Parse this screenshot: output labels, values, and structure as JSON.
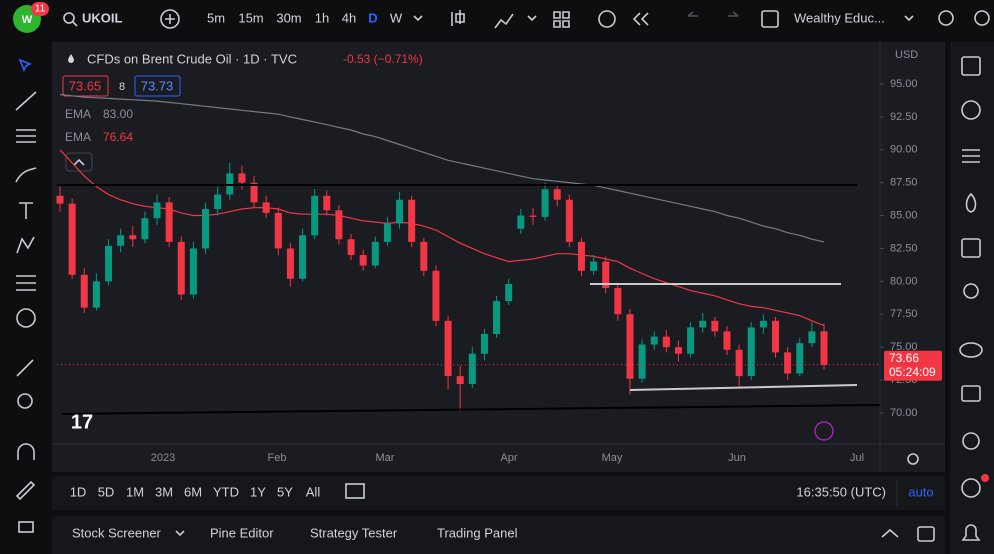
{
  "toolbar": {
    "badge": "11",
    "symbol": "UKOIL",
    "intervals": [
      "5m",
      "15m",
      "30m",
      "1h",
      "4h",
      "D",
      "W"
    ],
    "active_interval": 5,
    "layout_name": "Wealthy Educ..."
  },
  "chart_data": {
    "type": "candlestick",
    "title": "CFDs on Brent Crude Oil · 1D · TVC",
    "change": "-0.53 (−0.71%)",
    "bid": 73.65,
    "spread": 8,
    "ask": 73.73,
    "currency": "USD",
    "up_color": "#089981",
    "down_color": "#f23645",
    "candles": [
      [
        86.5,
        87.2,
        85.3,
        85.9
      ],
      [
        85.9,
        86.3,
        80.2,
        80.5
      ],
      [
        80.5,
        81.0,
        77.6,
        78.0
      ],
      [
        78.0,
        80.6,
        77.8,
        80.0
      ],
      [
        80.0,
        83.2,
        79.7,
        82.7
      ],
      [
        82.7,
        84.0,
        82.2,
        83.5
      ],
      [
        83.5,
        84.2,
        82.6,
        83.2
      ],
      [
        83.2,
        85.3,
        82.9,
        84.8
      ],
      [
        84.8,
        86.6,
        84.3,
        86.0
      ],
      [
        86.0,
        86.4,
        82.6,
        83.0
      ],
      [
        83.0,
        83.4,
        78.6,
        79.0
      ],
      [
        79.0,
        83.0,
        78.7,
        82.5
      ],
      [
        82.5,
        86.0,
        82.1,
        85.5
      ],
      [
        85.5,
        87.2,
        85.0,
        86.6
      ],
      [
        86.6,
        89.0,
        86.2,
        88.2
      ],
      [
        88.2,
        88.8,
        87.0,
        87.5
      ],
      [
        87.5,
        88.0,
        85.6,
        86.0
      ],
      [
        86.0,
        86.5,
        84.8,
        85.2
      ],
      [
        85.2,
        85.6,
        82.0,
        82.5
      ],
      [
        82.5,
        82.9,
        79.6,
        80.2
      ],
      [
        80.2,
        84.0,
        80.0,
        83.5
      ],
      [
        83.5,
        87.0,
        83.2,
        86.5
      ],
      [
        86.5,
        86.9,
        85.0,
        85.4
      ],
      [
        85.4,
        85.8,
        82.8,
        83.2
      ],
      [
        83.2,
        83.6,
        81.6,
        82.0
      ],
      [
        82.0,
        82.4,
        80.8,
        81.2
      ],
      [
        81.2,
        83.4,
        81.0,
        83.0
      ],
      [
        83.0,
        84.9,
        82.7,
        84.4
      ],
      [
        84.4,
        86.8,
        84.0,
        86.2
      ],
      [
        86.2,
        86.5,
        82.6,
        83.0
      ],
      [
        83.0,
        83.3,
        80.4,
        80.8
      ],
      [
        80.8,
        81.2,
        76.6,
        77.0
      ],
      [
        77.0,
        77.4,
        71.8,
        72.8
      ],
      [
        72.8,
        73.6,
        70.1,
        72.2
      ],
      [
        72.2,
        75.0,
        71.9,
        74.5
      ],
      [
        74.5,
        76.4,
        74.0,
        76.0
      ],
      [
        76.0,
        78.9,
        75.7,
        78.5
      ],
      [
        78.5,
        80.2,
        78.2,
        79.8
      ],
      [
        84.0,
        85.5,
        83.6,
        85.0
      ],
      [
        85.0,
        85.6,
        84.3,
        84.9
      ],
      [
        84.9,
        87.5,
        84.6,
        87.0
      ],
      [
        87.0,
        87.3,
        85.7,
        86.2
      ],
      [
        86.2,
        86.6,
        82.6,
        83.0
      ],
      [
        83.0,
        83.3,
        80.4,
        80.8
      ],
      [
        80.8,
        82.0,
        80.5,
        81.5
      ],
      [
        81.5,
        81.9,
        79.1,
        79.5
      ],
      [
        79.5,
        79.9,
        77.0,
        77.5
      ],
      [
        77.5,
        77.9,
        71.4,
        72.6
      ],
      [
        72.6,
        75.6,
        72.3,
        75.2
      ],
      [
        75.2,
        76.2,
        74.8,
        75.8
      ],
      [
        75.8,
        76.3,
        74.6,
        75.0
      ],
      [
        75.0,
        75.5,
        73.9,
        74.5
      ],
      [
        74.5,
        76.9,
        74.2,
        76.5
      ],
      [
        76.5,
        77.6,
        76.1,
        77.0
      ],
      [
        77.0,
        77.3,
        75.8,
        76.2
      ],
      [
        76.2,
        76.6,
        74.4,
        74.8
      ],
      [
        74.8,
        75.2,
        72.0,
        72.8
      ],
      [
        72.8,
        76.9,
        72.5,
        76.5
      ],
      [
        76.5,
        77.5,
        76.0,
        77.0
      ],
      [
        77.0,
        77.3,
        74.2,
        74.6
      ],
      [
        74.6,
        75.0,
        72.5,
        73.0
      ],
      [
        73.0,
        75.7,
        72.8,
        75.3
      ],
      [
        75.3,
        76.9,
        75.0,
        76.2
      ],
      [
        76.2,
        76.8,
        73.3,
        73.66
      ]
    ],
    "series": [
      {
        "name": "EMA",
        "color": "#787b86",
        "legend_value": "83.00",
        "values": [
          94.2,
          94.1,
          94.0,
          93.95,
          93.9,
          93.85,
          93.8,
          93.75,
          93.7,
          93.6,
          93.5,
          93.4,
          93.3,
          93.2,
          93.1,
          93.0,
          92.9,
          92.8,
          92.7,
          92.5,
          92.3,
          92.1,
          91.9,
          91.7,
          91.5,
          91.2,
          91.0,
          90.7,
          90.4,
          90.1,
          89.8,
          89.5,
          89.2,
          89.0,
          88.8,
          88.6,
          88.4,
          88.2,
          88.0,
          87.8,
          87.7,
          87.6,
          87.5,
          87.4,
          87.3,
          87.1,
          86.9,
          86.7,
          86.5,
          86.3,
          86.1,
          85.9,
          85.7,
          85.5,
          85.3,
          85.0,
          84.8,
          84.5,
          84.2,
          84.0,
          83.7,
          83.5,
          83.2,
          83.0
        ]
      },
      {
        "name": "EMA",
        "color": "#f23645",
        "legend_value": "76.64",
        "values": [
          90.0,
          89.0,
          88.0,
          87.2,
          86.6,
          86.2,
          85.9,
          85.7,
          85.6,
          85.5,
          85.2,
          85.0,
          85.0,
          85.1,
          85.3,
          85.5,
          85.6,
          85.6,
          85.5,
          85.2,
          85.1,
          85.1,
          85.1,
          85.0,
          84.8,
          84.6,
          84.5,
          84.4,
          84.5,
          84.4,
          84.2,
          83.9,
          83.4,
          82.9,
          82.5,
          82.1,
          81.8,
          81.5,
          81.6,
          81.7,
          81.9,
          82.1,
          82.1,
          82.0,
          81.9,
          81.7,
          81.5,
          81.0,
          80.6,
          80.2,
          79.9,
          79.6,
          79.3,
          79.1,
          78.9,
          78.6,
          78.3,
          78.1,
          78.0,
          77.8,
          77.6,
          77.4,
          77.0,
          76.64
        ]
      }
    ],
    "ylim": [
      67.64,
      97.96
    ],
    "yticks": [
      {
        "value": 95,
        "label": "95.00"
      },
      {
        "value": 92.5,
        "label": "92.50"
      },
      {
        "value": 90,
        "label": "90.00"
      },
      {
        "value": 87.5,
        "label": "87.50"
      },
      {
        "value": 85,
        "label": "85.00"
      },
      {
        "value": 82.5,
        "label": "82.50"
      },
      {
        "value": 80,
        "label": "80.00"
      },
      {
        "value": 77.5,
        "label": "77.50"
      },
      {
        "value": 75,
        "label": "75.00"
      },
      {
        "value": 72.5,
        "label": "72.50"
      },
      {
        "value": 70,
        "label": "70.00"
      }
    ],
    "x_labels": [
      "2023",
      "Feb",
      "Mar",
      "Apr",
      "May",
      "Jun",
      "Jul"
    ],
    "last_price": 73.66,
    "countdown": "05:24:09"
  },
  "bottom_toolbar": {
    "ranges": [
      "1D",
      "5D",
      "1M",
      "3M",
      "6M",
      "YTD",
      "1Y",
      "5Y",
      "All"
    ],
    "time": "16:35:50 (UTC)",
    "scale": "auto"
  },
  "panel": {
    "tabs": [
      "Stock Screener",
      "Pine Editor",
      "Strategy Tester",
      "Trading Panel"
    ]
  }
}
